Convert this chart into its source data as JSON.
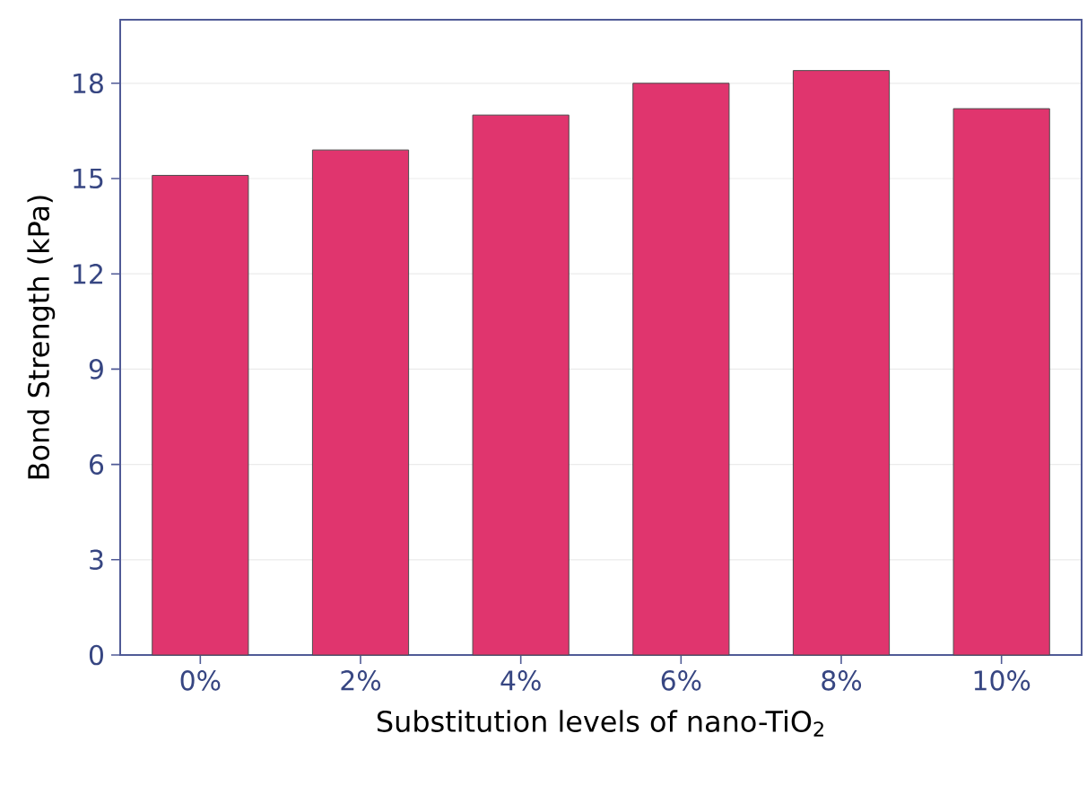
{
  "chart_data": {
    "type": "bar",
    "xlabel": "Substitution levels of nano-TiO$_{2}$",
    "ylabel": "Bond Strength (kPa)",
    "categories": [
      "0%",
      "2%",
      "4%",
      "6%",
      "8%",
      "10%"
    ],
    "values": [
      15.1,
      15.9,
      17.0,
      18.0,
      18.4,
      17.2
    ],
    "color": "#e0356e",
    "ylim": [
      0,
      20
    ],
    "yticks": [
      0,
      3,
      6,
      9,
      12,
      15,
      18
    ],
    "grid": "y"
  }
}
